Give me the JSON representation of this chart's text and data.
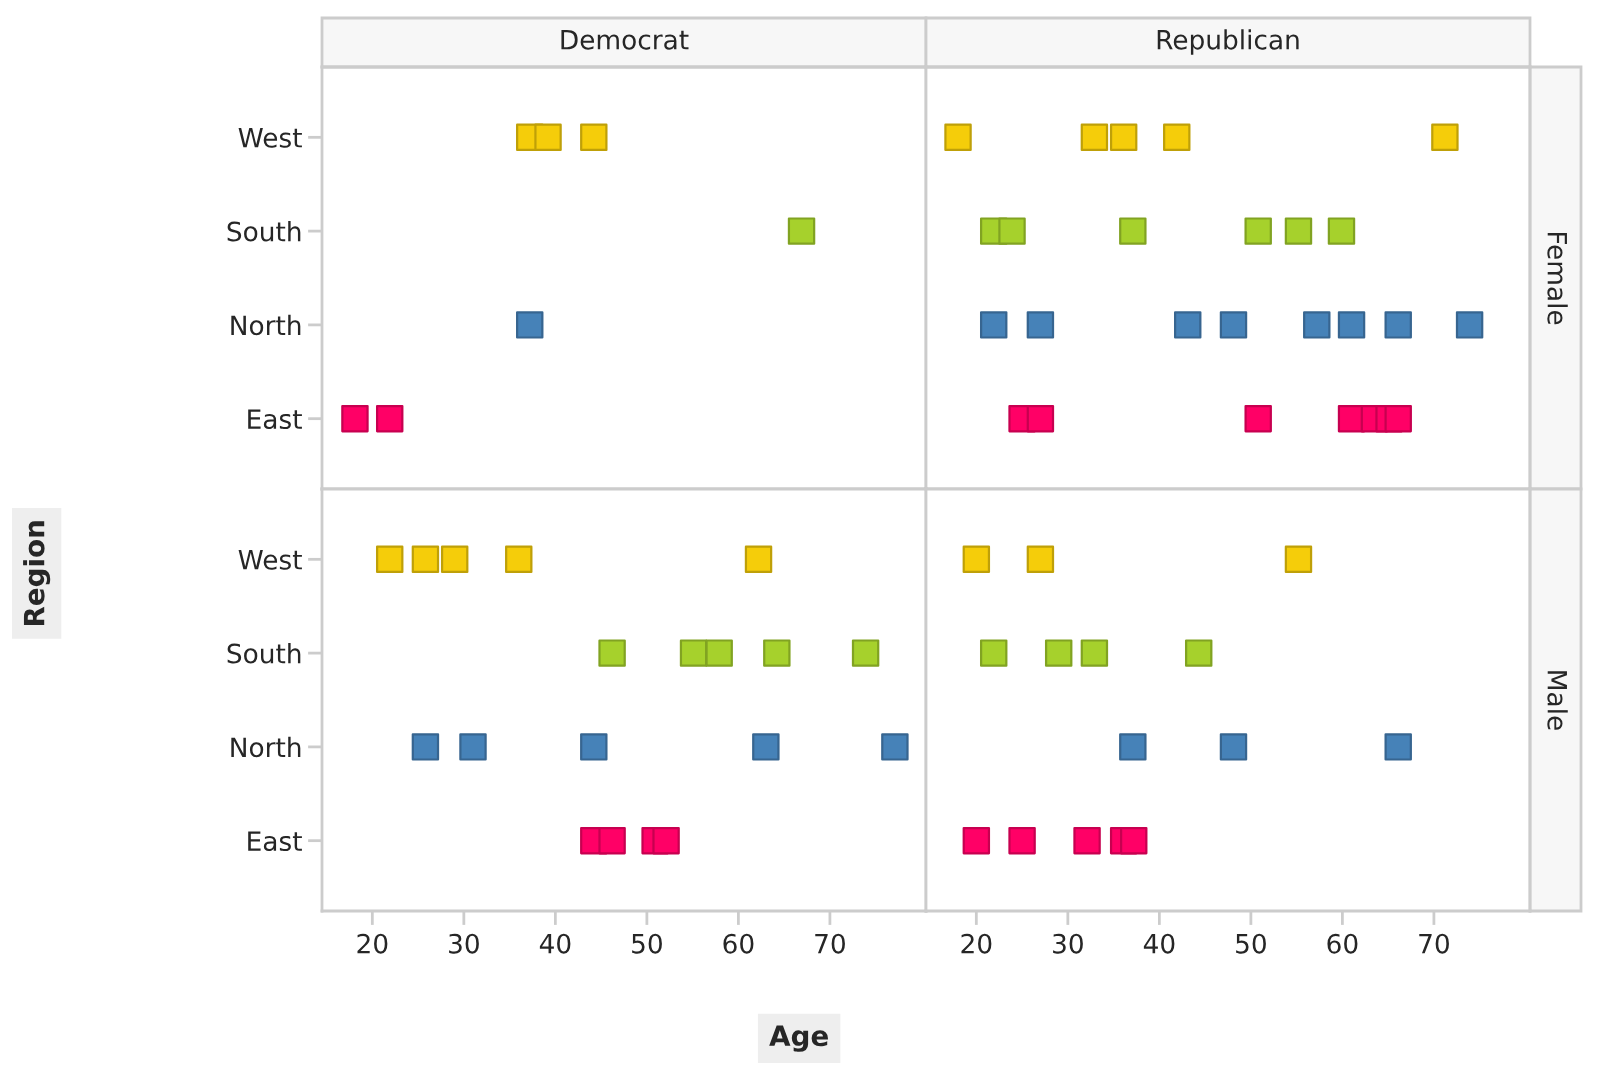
{
  "chart_data": [
    {
      "type": "scatter",
      "title": "Democrat",
      "orientation": "horizontal",
      "marker": "square",
      "tick_labels": "y",
      "categories": [
        "West",
        "South",
        "North",
        "East"
      ],
      "xlim": [
        14.5,
        80.5
      ],
      "xticks": [
        20,
        30,
        40,
        50,
        60,
        70
      ],
      "series": [
        {
          "color": "#f5cd0a",
          "x": [
            "West",
            "West",
            "West"
          ],
          "values": [
            37.2,
            39.2,
            44.2
          ]
        },
        {
          "color": "#a6d12c",
          "x": [
            "South"
          ],
          "values": [
            66.9
          ]
        },
        {
          "color": "#4682b8",
          "x": [
            "North"
          ],
          "values": [
            37.2
          ]
        },
        {
          "color": "#ff0066",
          "x": [
            "East",
            "East"
          ],
          "values": [
            18.1,
            21.9
          ]
        }
      ]
    },
    {
      "type": "scatter",
      "title": "Republican",
      "y2label": "Female",
      "orientation": "horizontal",
      "marker": "square",
      "tick_labels": false,
      "categories": [
        "West",
        "South",
        "North",
        "East"
      ],
      "xlim": [
        14.5,
        80.5
      ],
      "xticks": [
        20,
        30,
        40,
        50,
        60,
        70
      ],
      "series": [
        {
          "color": "#f5cd0a",
          "x": [
            "West",
            "West",
            "West",
            "West",
            "West"
          ],
          "values": [
            18.0,
            32.9,
            36.1,
            41.9,
            71.2
          ]
        },
        {
          "color": "#a6d12c",
          "x": [
            "South",
            "South",
            "South",
            "South",
            "South",
            "South"
          ],
          "values": [
            21.9,
            23.9,
            37.1,
            50.8,
            55.2,
            59.9
          ]
        },
        {
          "color": "#4682b8",
          "x": [
            "North",
            "North",
            "North",
            "North",
            "North",
            "North",
            "North",
            "North"
          ],
          "values": [
            21.9,
            27.0,
            43.1,
            48.1,
            57.2,
            61.0,
            66.1,
            73.9
          ]
        },
        {
          "color": "#ff0066",
          "x": [
            "East",
            "East",
            "East",
            "East",
            "East",
            "East",
            "East"
          ],
          "values": [
            25.0,
            27.0,
            50.8,
            61.0,
            63.5,
            65.1,
            66.1
          ]
        }
      ]
    },
    {
      "type": "scatter",
      "ylabel": "Region",
      "xlabel": "Age",
      "orientation": "horizontal",
      "marker": "square",
      "categories": [
        "West",
        "South",
        "North",
        "East"
      ],
      "xlim": [
        14.5,
        80.5
      ],
      "xticks": [
        20,
        30,
        40,
        50,
        60,
        70
      ],
      "series": [
        {
          "color": "#f5cd0a",
          "x": [
            "West",
            "West",
            "West",
            "West",
            "West"
          ],
          "values": [
            21.9,
            25.8,
            29.0,
            36.0,
            62.2
          ]
        },
        {
          "color": "#a6d12c",
          "x": [
            "South",
            "South",
            "South",
            "South",
            "South"
          ],
          "values": [
            46.2,
            55.1,
            57.9,
            64.2,
            73.9
          ]
        },
        {
          "color": "#4682b8",
          "x": [
            "North",
            "North",
            "North",
            "North",
            "North"
          ],
          "values": [
            25.8,
            31.0,
            44.2,
            63.0,
            77.1
          ]
        },
        {
          "color": "#ff0066",
          "x": [
            "East",
            "East",
            "East",
            "East"
          ],
          "values": [
            44.2,
            46.2,
            50.9,
            52.1
          ]
        }
      ]
    },
    {
      "type": "scatter",
      "y2label": "Male",
      "orientation": "horizontal",
      "marker": "square",
      "tick_labels": "x",
      "categories": [
        "West",
        "South",
        "North",
        "East"
      ],
      "xlim": [
        14.5,
        80.5
      ],
      "xticks": [
        20,
        30,
        40,
        50,
        60,
        70
      ],
      "series": [
        {
          "color": "#f5cd0a",
          "x": [
            "West",
            "West",
            "West"
          ],
          "values": [
            20.0,
            27.0,
            55.2
          ]
        },
        {
          "color": "#a6d12c",
          "x": [
            "South",
            "South",
            "South",
            "South"
          ],
          "values": [
            21.9,
            29.0,
            32.9,
            44.3
          ]
        },
        {
          "color": "#4682b8",
          "x": [
            "North",
            "North",
            "North"
          ],
          "values": [
            37.1,
            48.1,
            66.1
          ]
        },
        {
          "color": "#ff0066",
          "x": [
            "East",
            "East",
            "East",
            "East",
            "East"
          ],
          "values": [
            20.0,
            25.0,
            32.1,
            36.1,
            37.2
          ]
        }
      ]
    }
  ]
}
